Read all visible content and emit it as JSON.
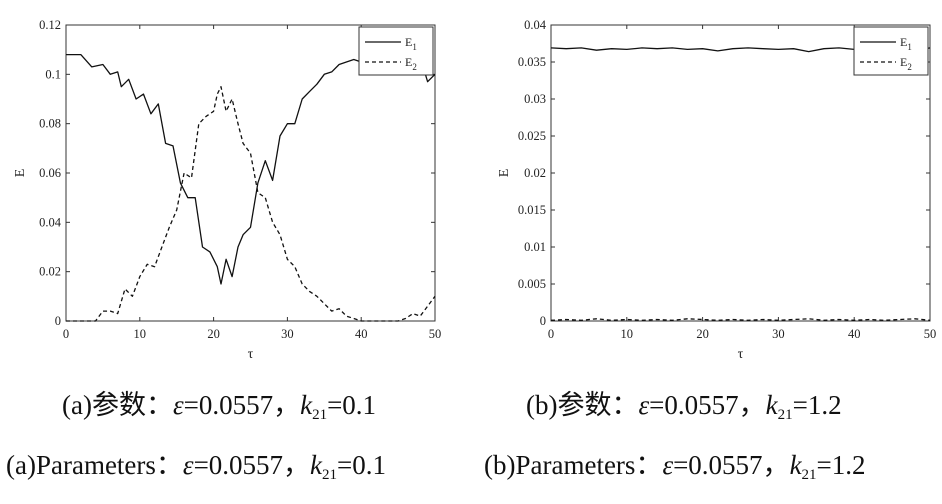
{
  "chart_data": [
    {
      "type": "line",
      "xlabel": "τ",
      "ylabel": "E",
      "xlim": [
        0,
        50
      ],
      "ylim": [
        0,
        0.12
      ],
      "xticks": [
        "0",
        "10",
        "20",
        "30",
        "40",
        "50"
      ],
      "yticks": [
        "0",
        "0.02",
        "0.04",
        "0.06",
        "0.08",
        "0.1",
        "0.12"
      ],
      "grid": false,
      "legend_position": "top-right",
      "series": [
        {
          "name": "E1",
          "style": "solid",
          "x": [
            0,
            2,
            3.5,
            5,
            6,
            7,
            7.5,
            8.5,
            9.5,
            10.5,
            11.5,
            12.5,
            13.5,
            14.5,
            15.5,
            16.5,
            17.5,
            18.5,
            19.5,
            20.5,
            21,
            21.7,
            22.5,
            23.3,
            24,
            25,
            26,
            27,
            28,
            29,
            30,
            31,
            32,
            33,
            34,
            35,
            36,
            37,
            38,
            39,
            40,
            41,
            42,
            43,
            44,
            45,
            46,
            47,
            48,
            49,
            50
          ],
          "values": [
            0.108,
            0.108,
            0.103,
            0.104,
            0.1,
            0.101,
            0.095,
            0.098,
            0.09,
            0.092,
            0.084,
            0.088,
            0.072,
            0.071,
            0.056,
            0.05,
            0.05,
            0.03,
            0.028,
            0.022,
            0.015,
            0.025,
            0.018,
            0.03,
            0.035,
            0.038,
            0.056,
            0.065,
            0.057,
            0.075,
            0.08,
            0.08,
            0.09,
            0.093,
            0.096,
            0.1,
            0.101,
            0.104,
            0.105,
            0.106,
            0.105,
            0.105,
            0.106,
            0.107,
            0.107,
            0.108,
            0.108,
            0.108,
            0.107,
            0.097,
            0.1
          ]
        },
        {
          "name": "E2",
          "style": "dashed",
          "x": [
            0,
            2,
            3,
            4,
            5,
            6,
            7,
            8,
            9,
            10,
            11,
            12,
            13,
            14,
            15,
            16,
            17,
            18,
            19,
            20,
            20.5,
            21,
            21.7,
            22.5,
            23.3,
            24,
            25,
            26,
            27,
            28,
            29,
            30,
            31,
            32,
            33,
            34,
            35,
            36,
            37,
            38,
            39,
            40,
            41,
            42,
            43,
            44,
            45,
            46,
            47,
            48,
            49,
            50
          ],
          "values": [
            0.0,
            0.0,
            0.0,
            0.0,
            0.004,
            0.004,
            0.003,
            0.013,
            0.01,
            0.018,
            0.023,
            0.022,
            0.03,
            0.038,
            0.045,
            0.06,
            0.058,
            0.08,
            0.083,
            0.085,
            0.092,
            0.095,
            0.085,
            0.09,
            0.08,
            0.072,
            0.068,
            0.052,
            0.05,
            0.04,
            0.035,
            0.025,
            0.022,
            0.015,
            0.012,
            0.01,
            0.007,
            0.004,
            0.005,
            0.002,
            0.001,
            0.0,
            0.0,
            0.0,
            0.0,
            0.0,
            0.0,
            0.001,
            0.003,
            0.002,
            0.006,
            0.01
          ]
        }
      ]
    },
    {
      "type": "line",
      "xlabel": "τ",
      "ylabel": "E",
      "xlim": [
        0,
        50
      ],
      "ylim": [
        0,
        0.04
      ],
      "xticks": [
        "0",
        "10",
        "20",
        "30",
        "40",
        "50"
      ],
      "yticks": [
        "0",
        "0.005",
        "0.01",
        "0.015",
        "0.02",
        "0.025",
        "0.03",
        "0.035",
        "0.04"
      ],
      "grid": false,
      "legend_position": "top-right",
      "series": [
        {
          "name": "E1",
          "style": "solid",
          "x": [
            0,
            2,
            4,
            6,
            8,
            10,
            12,
            14,
            16,
            18,
            20,
            22,
            24,
            26,
            28,
            30,
            32,
            34,
            36,
            38,
            40,
            42,
            44,
            46,
            48,
            50
          ],
          "values": [
            0.0369,
            0.0368,
            0.0369,
            0.0366,
            0.0368,
            0.0367,
            0.0369,
            0.0368,
            0.0369,
            0.0367,
            0.0368,
            0.0365,
            0.0368,
            0.0369,
            0.0368,
            0.0367,
            0.0368,
            0.0364,
            0.0368,
            0.0369,
            0.0367,
            0.0368,
            0.0369,
            0.0368,
            0.0365,
            0.0369
          ]
        },
        {
          "name": "E2",
          "style": "dashed",
          "x": [
            0,
            2,
            4,
            6,
            8,
            10,
            12,
            14,
            16,
            18,
            20,
            22,
            24,
            26,
            28,
            30,
            32,
            34,
            36,
            38,
            40,
            42,
            44,
            46,
            48,
            50
          ],
          "values": [
            0.0001,
            0.0002,
            0.0001,
            0.0003,
            0.0001,
            0.0002,
            0.0001,
            0.0002,
            0.0001,
            0.0003,
            0.0002,
            0.0001,
            0.0002,
            0.0001,
            0.0002,
            0.0001,
            0.0002,
            0.0003,
            0.0001,
            0.0002,
            0.0001,
            0.0002,
            0.0001,
            0.0002,
            0.0003,
            0.0001
          ]
        }
      ]
    }
  ],
  "captions": [
    {
      "prefix": "(a)参数：",
      "eps": "ε",
      "eps_value": "=0.0557，",
      "k": "k",
      "k_sub": "21",
      "k_value": "=0.1"
    },
    {
      "prefix": "(b)参数：",
      "eps": "ε",
      "eps_value": "=0.0557，",
      "k": "k",
      "k_sub": "21",
      "k_value": "=1.2"
    },
    {
      "prefix": "(a)Parameters：",
      "eps": "ε",
      "eps_value": "=0.0557，",
      "k": "k",
      "k_sub": "21",
      "k_value": "=0.1"
    },
    {
      "prefix": "(b)Parameters：",
      "eps": "ε",
      "eps_value": "=0.0557，",
      "k": "k",
      "k_sub": "21",
      "k_value": "=1.2"
    }
  ]
}
